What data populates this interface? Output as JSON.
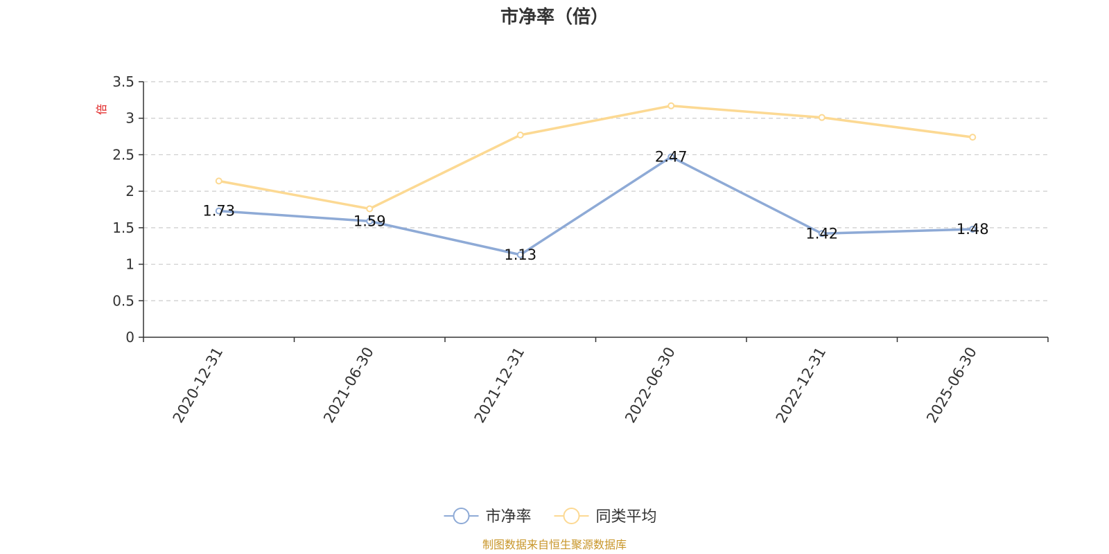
{
  "chart_data": {
    "type": "line",
    "title": "市净率（倍）",
    "ylabel": "倍",
    "categories": [
      "2020-12-31",
      "2021-06-30",
      "2021-12-31",
      "2022-06-30",
      "2022-12-31",
      "2025-06-30"
    ],
    "ylim": [
      0,
      3.5
    ],
    "yticks": [
      "0",
      "0.5",
      "1",
      "1.5",
      "2",
      "2.5",
      "3",
      "3.5"
    ],
    "grid": true,
    "legend_position": "bottom-center",
    "series": [
      {
        "name": "市净率",
        "color": "#8eaad6",
        "values": [
          1.73,
          1.59,
          1.13,
          2.47,
          1.42,
          1.48
        ],
        "labels": [
          "1.73",
          "1.59",
          "1.13",
          "2.47",
          "1.42",
          "1.48"
        ]
      },
      {
        "name": "同类平均",
        "color": "#fcd993",
        "values": [
          2.14,
          1.76,
          2.77,
          3.17,
          3.01,
          2.74
        ]
      }
    ]
  },
  "source_note": "制图数据来自恒生聚源数据库",
  "colors": {
    "ylabel": "#e02020",
    "source": "#c8962a",
    "axis": "#333333",
    "grid": "#cccccc"
  }
}
